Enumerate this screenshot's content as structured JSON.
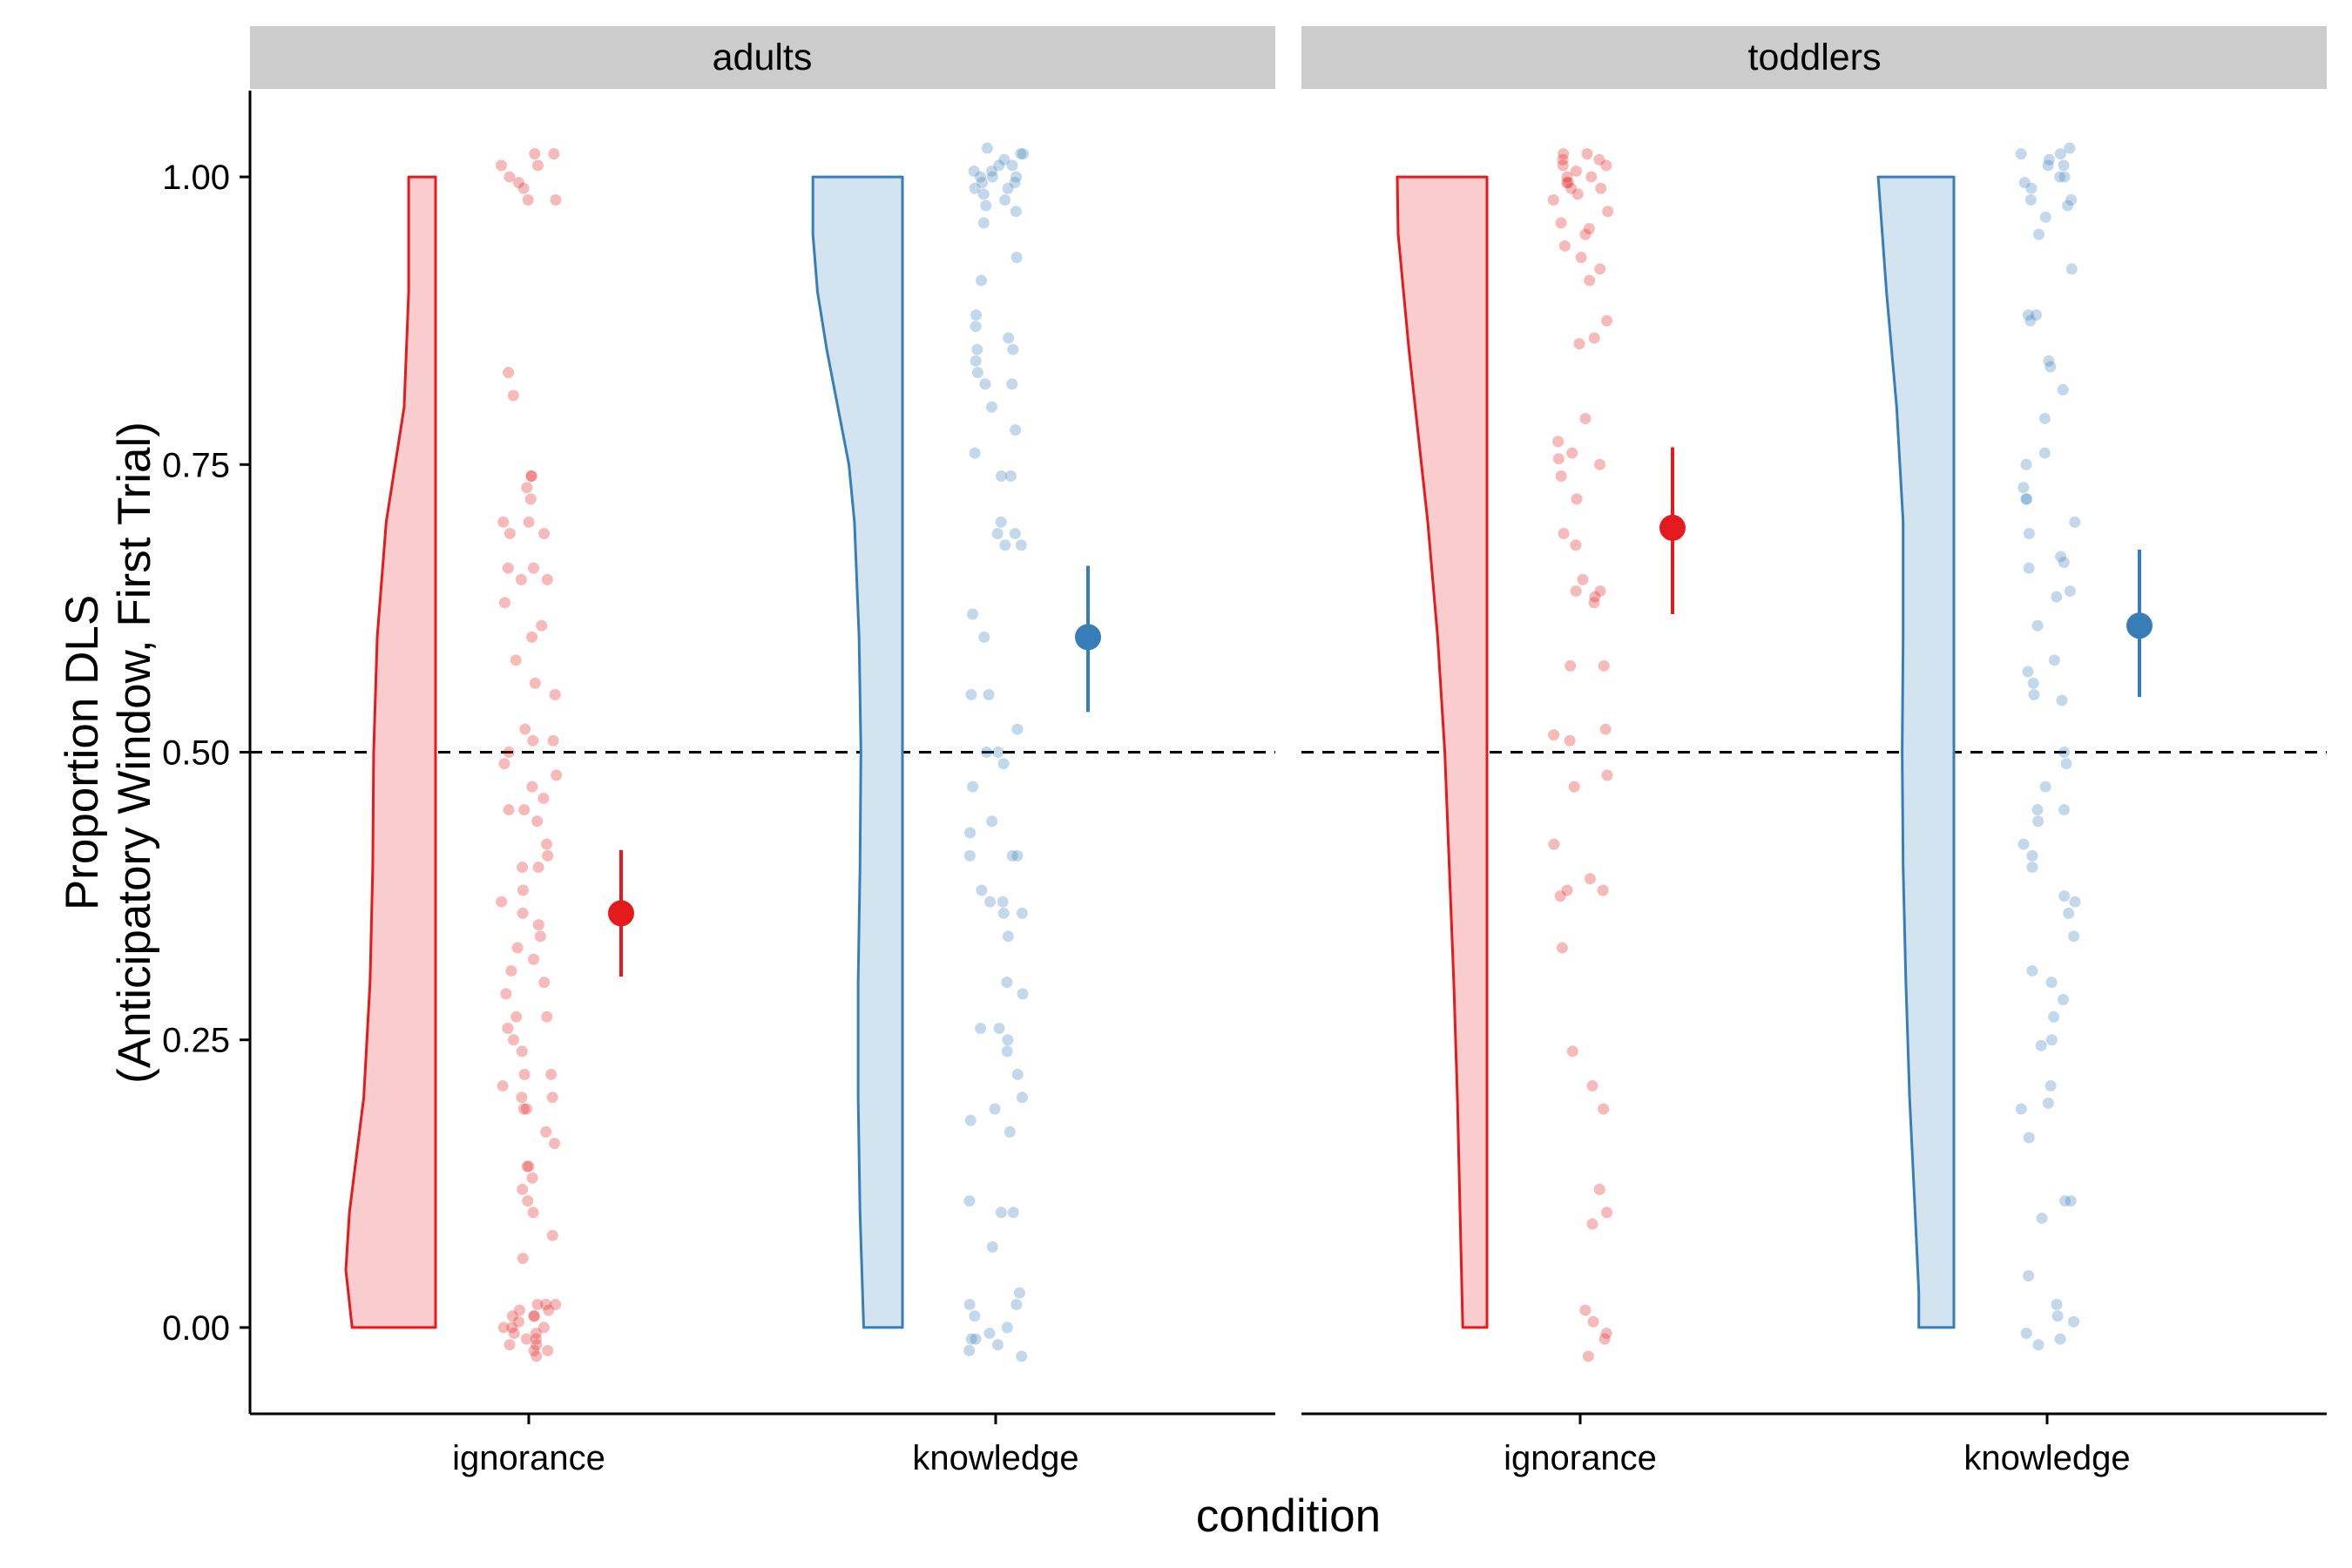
{
  "chart_data": {
    "type": "raincloud",
    "facets": [
      "adults",
      "toddlers"
    ],
    "xlabel": "condition",
    "ylabel_lines": [
      "Proportion DLS",
      "(Anticipatory Window, First Trial)"
    ],
    "categories": [
      "ignorance",
      "knowledge"
    ],
    "ylim": [
      -0.075,
      1.075
    ],
    "yticks": [
      0.0,
      0.25,
      0.5,
      0.75,
      1.0
    ],
    "ytick_labels": [
      "0.00",
      "0.25",
      "0.50",
      "0.75",
      "1.00"
    ],
    "reference_line": {
      "y": 0.5,
      "style": "dashed"
    },
    "grid": false,
    "colors": {
      "ignorance": "#E41A1C",
      "knowledge": "#377EB8",
      "strip": "#CCCCCC"
    },
    "summary": [
      {
        "facet": "adults",
        "condition": "ignorance",
        "mean": 0.36,
        "ci_low": 0.305,
        "ci_high": 0.415
      },
      {
        "facet": "adults",
        "condition": "knowledge",
        "mean": 0.6,
        "ci_low": 0.535,
        "ci_high": 0.662
      },
      {
        "facet": "toddlers",
        "condition": "ignorance",
        "mean": 0.695,
        "ci_low": 0.62,
        "ci_high": 0.765
      },
      {
        "facet": "toddlers",
        "condition": "knowledge",
        "mean": 0.61,
        "ci_low": 0.548,
        "ci_high": 0.676
      }
    ],
    "density": [
      {
        "facet": "adults",
        "condition": "ignorance",
        "y": [
          0,
          0.05,
          0.1,
          0.15,
          0.2,
          0.3,
          0.4,
          0.5,
          0.6,
          0.7,
          0.8,
          0.9,
          1.0
        ],
        "relative_width": [
          0.93,
          1.0,
          0.96,
          0.88,
          0.8,
          0.73,
          0.7,
          0.69,
          0.65,
          0.55,
          0.35,
          0.3,
          0.3
        ]
      },
      {
        "facet": "adults",
        "condition": "knowledge",
        "y": [
          0,
          0.1,
          0.2,
          0.3,
          0.4,
          0.5,
          0.6,
          0.7,
          0.75,
          0.8,
          0.85,
          0.9,
          0.95,
          1.0
        ],
        "relative_width": [
          0.42,
          0.46,
          0.48,
          0.48,
          0.46,
          0.45,
          0.47,
          0.52,
          0.58,
          0.7,
          0.82,
          0.92,
          0.97,
          0.97
        ]
      },
      {
        "facet": "toddlers",
        "condition": "ignorance",
        "y": [
          0,
          0.1,
          0.2,
          0.3,
          0.4,
          0.5,
          0.6,
          0.7,
          0.75,
          0.8,
          0.85,
          0.9,
          0.95,
          1.0
        ],
        "relative_width": [
          0.27,
          0.3,
          0.33,
          0.37,
          0.42,
          0.47,
          0.55,
          0.66,
          0.73,
          0.8,
          0.87,
          0.93,
          0.99,
          1.0
        ]
      },
      {
        "facet": "toddlers",
        "condition": "knowledge",
        "y": [
          0,
          0.03,
          0.1,
          0.2,
          0.3,
          0.4,
          0.5,
          0.6,
          0.7,
          0.8,
          0.9,
          1.0
        ],
        "relative_width": [
          0.38,
          0.38,
          0.42,
          0.48,
          0.52,
          0.55,
          0.56,
          0.55,
          0.55,
          0.62,
          0.73,
          0.82
        ]
      }
    ],
    "points": [
      {
        "facet": "adults",
        "condition": "ignorance",
        "y": [
          1.02,
          1.02,
          1.01,
          1.01,
          1.0,
          0.995,
          0.99,
          0.98,
          0.98,
          0.83,
          0.81,
          0.74,
          0.74,
          0.73,
          0.72,
          0.7,
          0.7,
          0.69,
          0.69,
          0.66,
          0.66,
          0.65,
          0.65,
          0.63,
          0.61,
          0.6,
          0.58,
          0.56,
          0.55,
          0.52,
          0.51,
          0.51,
          0.5,
          0.49,
          0.48,
          0.47,
          0.46,
          0.45,
          0.45,
          0.44,
          0.42,
          0.41,
          0.4,
          0.4,
          0.38,
          0.37,
          0.36,
          0.35,
          0.34,
          0.33,
          0.32,
          0.31,
          0.3,
          0.29,
          0.27,
          0.27,
          0.26,
          0.25,
          0.24,
          0.22,
          0.22,
          0.21,
          0.2,
          0.2,
          0.19,
          0.19,
          0.17,
          0.16,
          0.14,
          0.14,
          0.13,
          0.12,
          0.11,
          0.1,
          0.08,
          0.06,
          0.02,
          0.02,
          0.02,
          0.015,
          0.015,
          0.01,
          0.01,
          0.01,
          0.005,
          0.0,
          0.0,
          0.0,
          -0.005,
          -0.005,
          -0.01,
          -0.01,
          -0.015,
          -0.015,
          -0.02,
          -0.02,
          -0.025
        ]
      },
      {
        "facet": "adults",
        "condition": "knowledge",
        "y": [
          1.025,
          1.02,
          1.02,
          1.015,
          1.01,
          1.01,
          1.005,
          1.005,
          1.0,
          1.0,
          1.0,
          0.995,
          0.995,
          0.99,
          0.99,
          0.985,
          0.98,
          0.975,
          0.97,
          0.96,
          0.93,
          0.91,
          0.88,
          0.87,
          0.86,
          0.85,
          0.85,
          0.84,
          0.83,
          0.82,
          0.82,
          0.8,
          0.78,
          0.76,
          0.74,
          0.74,
          0.7,
          0.69,
          0.69,
          0.68,
          0.68,
          0.62,
          0.6,
          0.55,
          0.55,
          0.52,
          0.5,
          0.5,
          0.49,
          0.47,
          0.44,
          0.43,
          0.41,
          0.41,
          0.41,
          0.38,
          0.37,
          0.37,
          0.36,
          0.36,
          0.34,
          0.3,
          0.29,
          0.26,
          0.26,
          0.25,
          0.24,
          0.22,
          0.2,
          0.19,
          0.18,
          0.17,
          0.11,
          0.1,
          0.1,
          0.07,
          0.03,
          0.02,
          0.02,
          0.01,
          0.0,
          -0.005,
          -0.01,
          -0.01,
          -0.015,
          -0.02,
          -0.025
        ]
      },
      {
        "facet": "toddlers",
        "condition": "ignorance",
        "y": [
          1.02,
          1.02,
          1.015,
          1.015,
          1.01,
          1.01,
          1.005,
          1.0,
          1.0,
          0.995,
          0.995,
          0.99,
          0.99,
          0.985,
          0.98,
          0.97,
          0.96,
          0.955,
          0.95,
          0.94,
          0.93,
          0.92,
          0.91,
          0.875,
          0.86,
          0.855,
          0.79,
          0.77,
          0.76,
          0.755,
          0.75,
          0.74,
          0.72,
          0.69,
          0.68,
          0.65,
          0.64,
          0.64,
          0.635,
          0.63,
          0.575,
          0.575,
          0.52,
          0.515,
          0.51,
          0.48,
          0.47,
          0.42,
          0.39,
          0.38,
          0.38,
          0.375,
          0.33,
          0.24,
          0.21,
          0.19,
          0.12,
          0.1,
          0.09,
          0.015,
          0.005,
          -0.005,
          -0.01,
          -0.025
        ]
      },
      {
        "facet": "toddlers",
        "condition": "knowledge",
        "y": [
          1.025,
          1.02,
          1.02,
          1.015,
          1.01,
          1.01,
          1.0,
          1.0,
          0.995,
          0.99,
          0.98,
          0.98,
          0.975,
          0.965,
          0.95,
          0.92,
          0.88,
          0.88,
          0.875,
          0.84,
          0.835,
          0.815,
          0.79,
          0.76,
          0.75,
          0.73,
          0.72,
          0.72,
          0.7,
          0.69,
          0.67,
          0.665,
          0.66,
          0.64,
          0.635,
          0.61,
          0.58,
          0.57,
          0.56,
          0.55,
          0.545,
          0.5,
          0.49,
          0.47,
          0.45,
          0.45,
          0.44,
          0.42,
          0.41,
          0.4,
          0.375,
          0.37,
          0.36,
          0.34,
          0.31,
          0.3,
          0.285,
          0.27,
          0.25,
          0.245,
          0.21,
          0.195,
          0.19,
          0.165,
          0.11,
          0.11,
          0.095,
          0.045,
          0.02,
          0.01,
          0.005,
          -0.005,
          -0.01,
          -0.015
        ]
      }
    ]
  }
}
